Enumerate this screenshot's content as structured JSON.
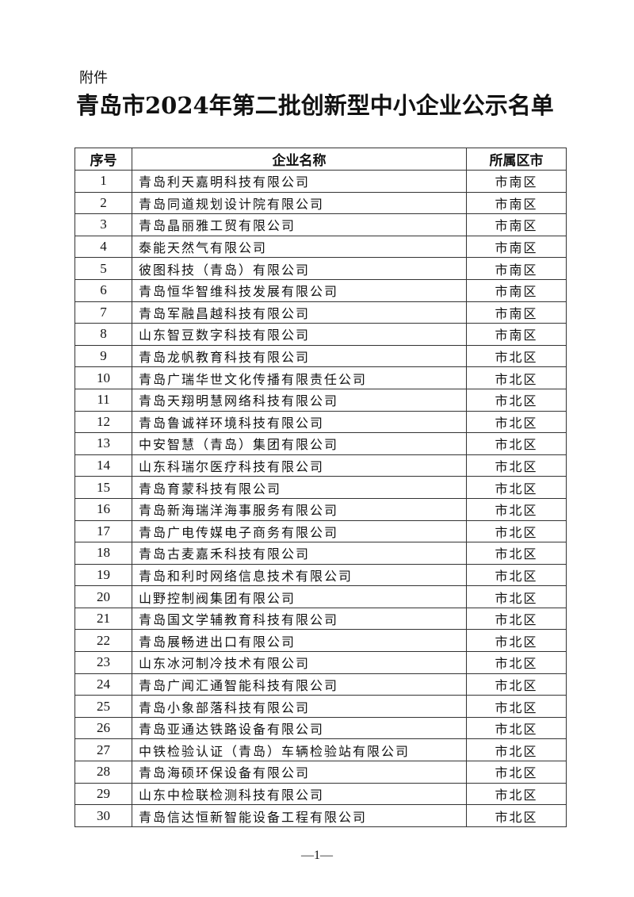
{
  "attachment_label": "附件",
  "title": "青岛市2024年第二批创新型中小企业公示名单",
  "table": {
    "headers": [
      "序号",
      "企业名称",
      "所属区市"
    ],
    "rows": [
      [
        "1",
        "青岛利天嘉明科技有限公司",
        "市南区"
      ],
      [
        "2",
        "青岛同道规划设计院有限公司",
        "市南区"
      ],
      [
        "3",
        "青岛晶丽雅工贸有限公司",
        "市南区"
      ],
      [
        "4",
        "泰能天然气有限公司",
        "市南区"
      ],
      [
        "5",
        "彼图科技（青岛）有限公司",
        "市南区"
      ],
      [
        "6",
        "青岛恒华智维科技发展有限公司",
        "市南区"
      ],
      [
        "7",
        "青岛军融昌越科技有限公司",
        "市南区"
      ],
      [
        "8",
        "山东智豆数字科技有限公司",
        "市南区"
      ],
      [
        "9",
        "青岛龙帆教育科技有限公司",
        "市北区"
      ],
      [
        "10",
        "青岛广瑞华世文化传播有限责任公司",
        "市北区"
      ],
      [
        "11",
        "青岛天翔明慧网络科技有限公司",
        "市北区"
      ],
      [
        "12",
        "青岛鲁诚祥环境科技有限公司",
        "市北区"
      ],
      [
        "13",
        "中安智慧（青岛）集团有限公司",
        "市北区"
      ],
      [
        "14",
        "山东科瑞尔医疗科技有限公司",
        "市北区"
      ],
      [
        "15",
        "青岛育蒙科技有限公司",
        "市北区"
      ],
      [
        "16",
        "青岛新海瑞洋海事服务有限公司",
        "市北区"
      ],
      [
        "17",
        "青岛广电传媒电子商务有限公司",
        "市北区"
      ],
      [
        "18",
        "青岛古麦嘉禾科技有限公司",
        "市北区"
      ],
      [
        "19",
        "青岛和利时网络信息技术有限公司",
        "市北区"
      ],
      [
        "20",
        "山野控制阀集团有限公司",
        "市北区"
      ],
      [
        "21",
        "青岛国文学辅教育科技有限公司",
        "市北区"
      ],
      [
        "22",
        "青岛展畅进出口有限公司",
        "市北区"
      ],
      [
        "23",
        "山东冰河制冷技术有限公司",
        "市北区"
      ],
      [
        "24",
        "青岛广闻汇通智能科技有限公司",
        "市北区"
      ],
      [
        "25",
        "青岛小象部落科技有限公司",
        "市北区"
      ],
      [
        "26",
        "青岛亚通达铁路设备有限公司",
        "市北区"
      ],
      [
        "27",
        "中铁检验认证（青岛）车辆检验站有限公司",
        "市北区"
      ],
      [
        "28",
        "青岛海硕环保设备有限公司",
        "市北区"
      ],
      [
        "29",
        "山东中检联检测科技有限公司",
        "市北区"
      ],
      [
        "30",
        "青岛信达恒新智能设备工程有限公司",
        "市北区"
      ]
    ]
  },
  "page_number": "—1—"
}
